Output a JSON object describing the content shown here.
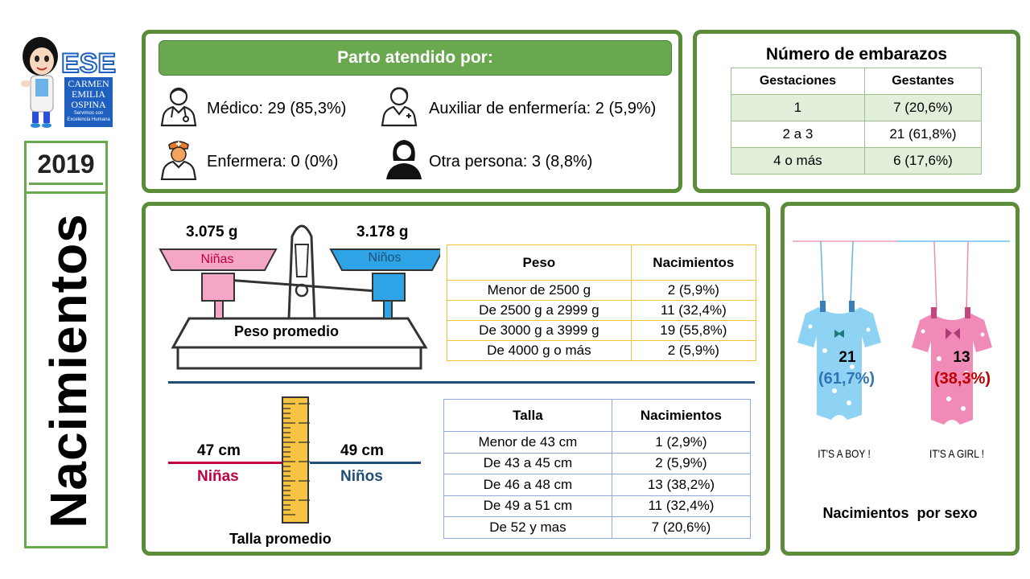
{
  "logo": {
    "line1": "CARMEN",
    "line2": "EMILIA",
    "line3": "OSPINA",
    "tagline1": "Servimos con",
    "tagline2": "Excelencia Humana",
    "colors": {
      "brand": "#1f5fbf"
    }
  },
  "year": "2019",
  "side_title": "Nacimientos",
  "parto": {
    "header": "Parto atendido por:",
    "items": [
      {
        "icon": "doctor-icon",
        "label": "Médico: 29 (85,3%)",
        "value": 29,
        "percent": 85.3
      },
      {
        "icon": "nursing-assistant-icon",
        "label": "Auxiliar de enfermería: 2 (5,9%)",
        "value": 2,
        "percent": 5.9
      },
      {
        "icon": "nurse-icon",
        "label": "Enfermera: 0 (0%)",
        "value": 0,
        "percent": 0
      },
      {
        "icon": "other-person-icon",
        "label": "Otra persona: 3 (8,8%)",
        "value": 3,
        "percent": 8.8
      }
    ]
  },
  "embarazos": {
    "title": "Número de embarazos",
    "headers": [
      "Gestaciones",
      "Gestantes"
    ],
    "rows": [
      [
        "1",
        "7 (20,6%)"
      ],
      [
        "2 a 3",
        "21 (61,8%)"
      ],
      [
        "4 o más",
        "6 (17,6%)"
      ]
    ]
  },
  "peso": {
    "girls_weight": "3.075 g",
    "boys_weight": "3.178 g",
    "girls_label": "Niñas",
    "boys_label": "Niños",
    "caption": "Peso promedio",
    "headers": [
      "Peso",
      "Nacimientos"
    ],
    "rows": [
      [
        "Menor de 2500 g",
        "2 (5,9%)"
      ],
      [
        "De 2500 g a 2999 g",
        "11 (32,4%)"
      ],
      [
        "De 3000 g a 3999 g",
        "19 (55,8%)"
      ],
      [
        "De 4000 g o más",
        "2 (5,9%)"
      ]
    ]
  },
  "talla": {
    "girls_height": "47 cm",
    "boys_height": "49 cm",
    "girls_label": "Niñas",
    "boys_label": "Niños",
    "caption": "Talla promedio",
    "headers": [
      "Talla",
      "Nacimientos"
    ],
    "rows": [
      [
        "Menor de 43 cm",
        "1 (2,9%)"
      ],
      [
        "De 43 a 45 cm",
        "2 (5,9%)"
      ],
      [
        "De 46 a 48 cm",
        "13 (38,2%)"
      ],
      [
        "De 49 a 51 cm",
        "11 (32,4%)"
      ],
      [
        "De 52 y mas",
        "7 (20,6%)"
      ]
    ]
  },
  "sexo": {
    "boys_count": "21",
    "boys_percent": "(61,7%)",
    "girls_count": "13",
    "girls_percent": "(38,3%)",
    "boy_caption": "IT'S A BOY !",
    "girl_caption": "IT'S A GIRL !",
    "title": "Nacimientos  por sexo"
  },
  "colors": {
    "panel_border": "#5b8c3a",
    "header_green": "#6aa84f",
    "girls": "#c00040",
    "boys": "#1f4e79",
    "pink": "#f4a6c6",
    "blue": "#2ea3e6"
  }
}
